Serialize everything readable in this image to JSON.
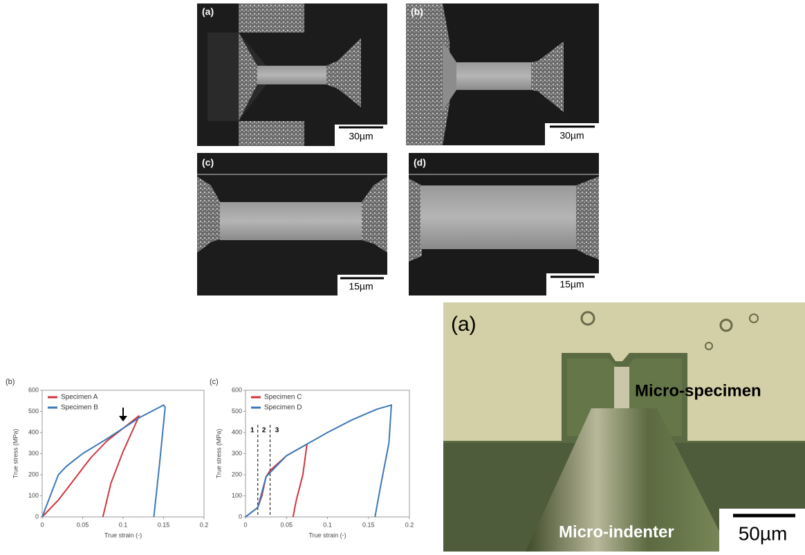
{
  "sem_panels": [
    {
      "label": "(a)",
      "scale_bar": "30µm"
    },
    {
      "label": "(b)",
      "scale_bar": "30µm"
    },
    {
      "label": "(c)",
      "scale_bar": "15µm"
    },
    {
      "label": "(d)",
      "scale_bar": "15µm"
    }
  ],
  "micrograph": {
    "label": "(a)",
    "specimen_label": "Micro-specimen",
    "indenter_label": "Micro-indenter",
    "scale_bar": "50µm"
  },
  "chart_data": [
    {
      "type": "line",
      "panel_label": "(b)",
      "xlabel": "True strain (-)",
      "ylabel": "True stress (MPa)",
      "xlim": [
        0,
        0.2
      ],
      "xticks": [
        0,
        0.05,
        0.1,
        0.15,
        0.2
      ],
      "ylim": [
        0,
        600
      ],
      "yticks": [
        0,
        100,
        200,
        300,
        400,
        500,
        600
      ],
      "series": [
        {
          "name": "Specimen A",
          "color": "#d0343c",
          "x": [
            0,
            0.02,
            0.04,
            0.06,
            0.08,
            0.1,
            0.12,
            0.1,
            0.085,
            0.075
          ],
          "values": [
            0,
            80,
            180,
            280,
            360,
            420,
            480,
            310,
            160,
            0
          ]
        },
        {
          "name": "Specimen B",
          "color": "#3c78b8",
          "x": [
            0,
            0.01,
            0.02,
            0.03,
            0.05,
            0.08,
            0.1,
            0.12,
            0.14,
            0.15,
            0.152,
            0.145,
            0.138
          ],
          "values": [
            0,
            100,
            200,
            240,
            300,
            370,
            420,
            470,
            510,
            530,
            520,
            250,
            0
          ]
        }
      ]
    },
    {
      "type": "line",
      "panel_label": "(c)",
      "xlabel": "True strain (-)",
      "ylabel": "True stress (MPa)",
      "xlim": [
        0,
        0.2
      ],
      "xticks": [
        0,
        0.05,
        0.1,
        0.15,
        0.2
      ],
      "ylim": [
        0,
        600
      ],
      "yticks": [
        0,
        100,
        200,
        300,
        400,
        500,
        600
      ],
      "dashed_lines": [
        0.015,
        0.03
      ],
      "region_labels": [
        "1",
        "2",
        "3"
      ],
      "series": [
        {
          "name": "Specimen C",
          "color": "#d0343c",
          "x": [
            0,
            0.015,
            0.02,
            0.025,
            0.03,
            0.05,
            0.075,
            0.07,
            0.062,
            0.058
          ],
          "values": [
            0,
            45,
            100,
            190,
            220,
            290,
            345,
            200,
            80,
            0
          ]
        },
        {
          "name": "Specimen D",
          "color": "#3c78b8",
          "x": [
            0,
            0.015,
            0.025,
            0.05,
            0.075,
            0.1,
            0.13,
            0.16,
            0.178,
            0.175,
            0.165,
            0.158
          ],
          "values": [
            0,
            45,
            190,
            290,
            345,
            400,
            460,
            510,
            530,
            350,
            150,
            0
          ]
        }
      ]
    }
  ]
}
